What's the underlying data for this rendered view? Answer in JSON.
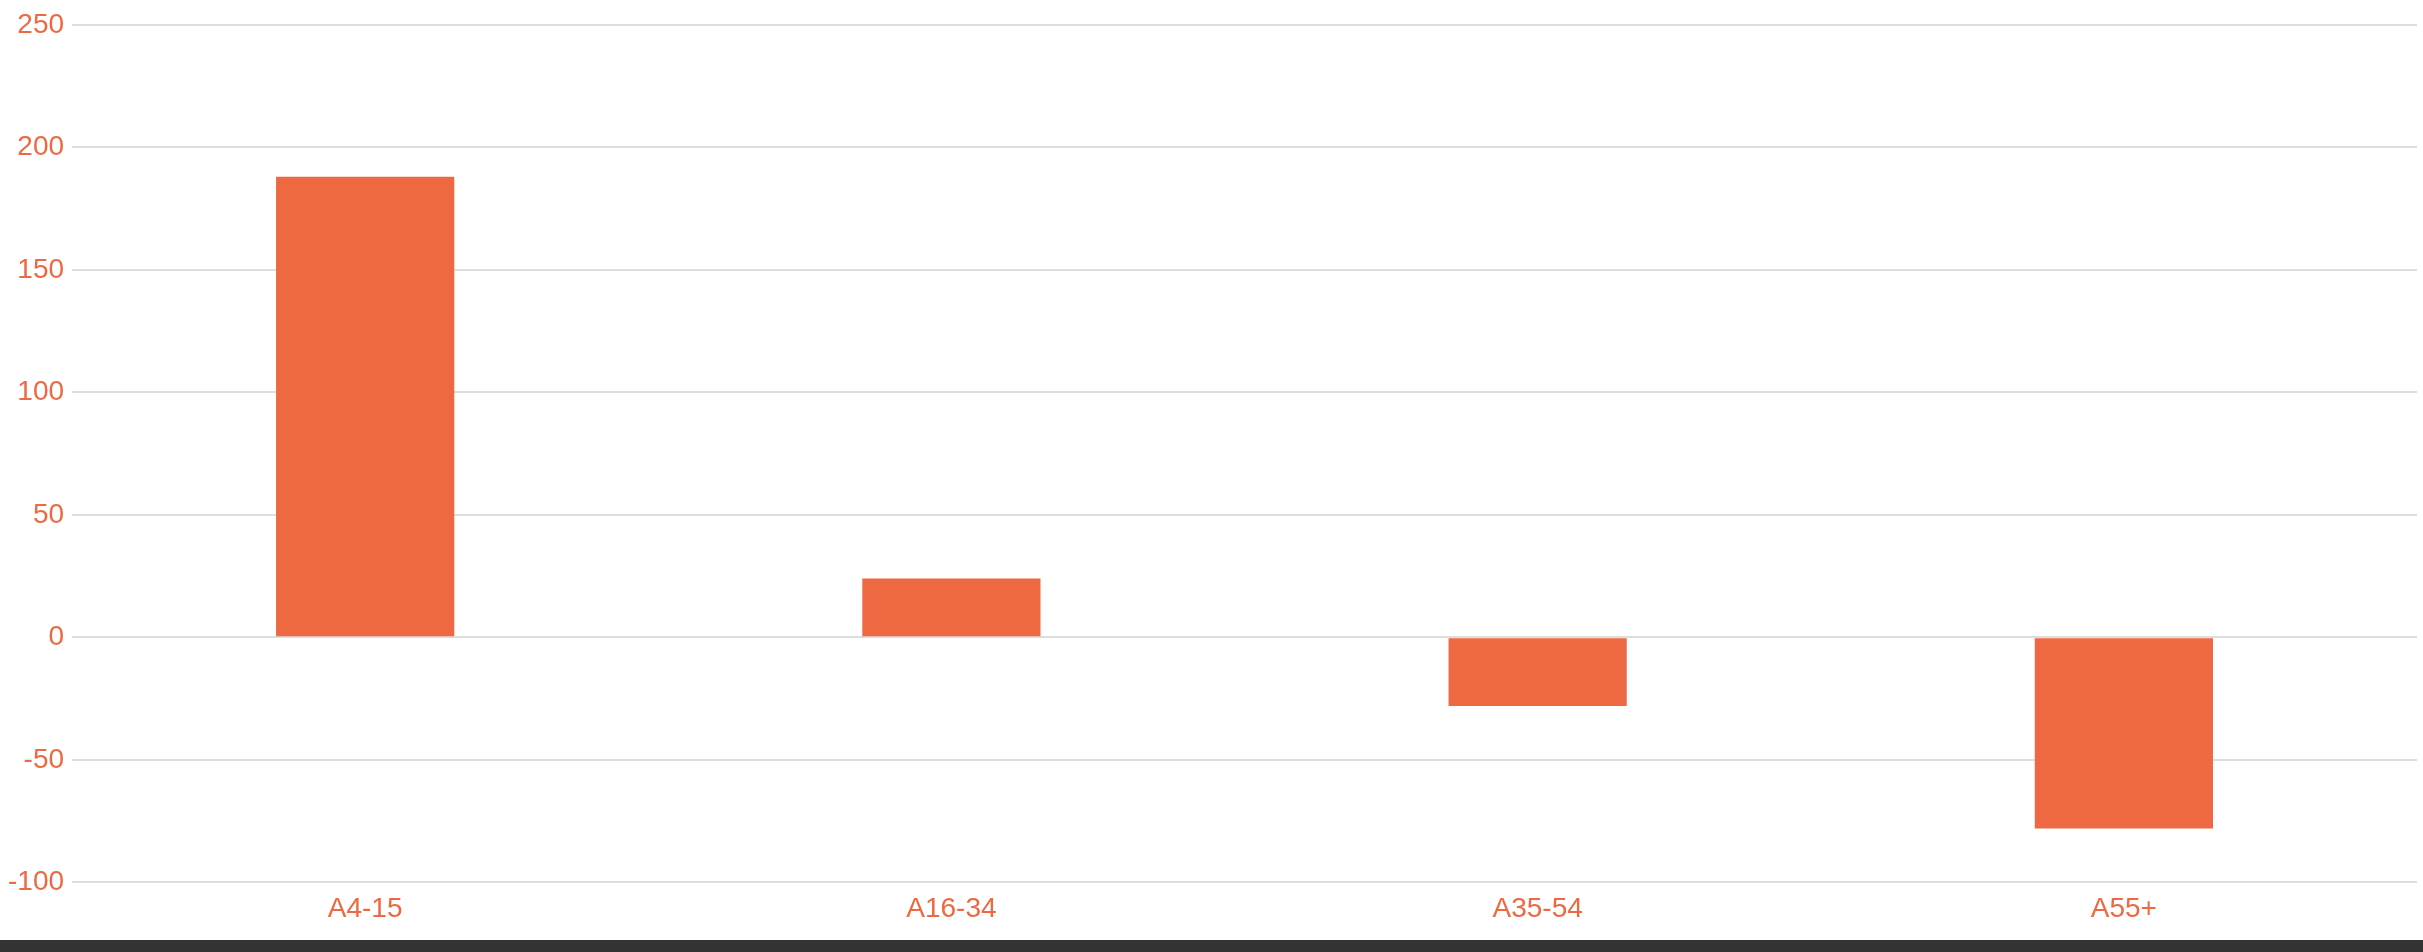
{
  "chart_data": {
    "type": "bar",
    "categories": [
      "A4-15",
      "A16-34",
      "A35-54",
      "A55+"
    ],
    "values": [
      188,
      24,
      -28,
      -78
    ],
    "color": "#ee6841",
    "ylim": [
      -100,
      250
    ],
    "yticks": [
      -100,
      -50,
      0,
      50,
      100,
      150,
      200,
      250
    ],
    "grid": "y"
  }
}
